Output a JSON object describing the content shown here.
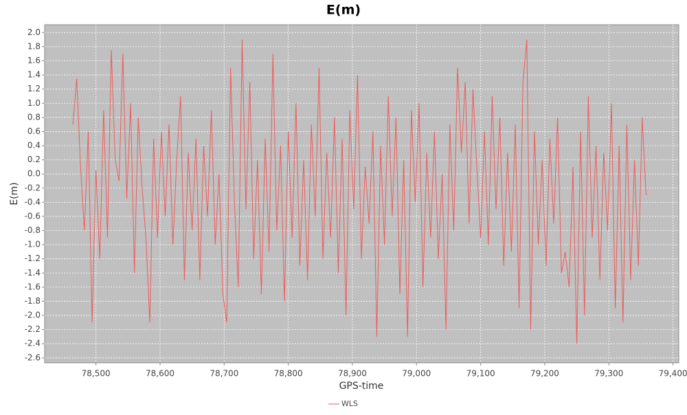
{
  "chart_data": {
    "type": "line",
    "title": "E(m)",
    "x_label": "GPS-time",
    "y_label": "E(m)",
    "x": [
      78464,
      78470,
      78476,
      78482,
      78488,
      78494,
      78500,
      78506,
      78512,
      78518,
      78524,
      78530,
      78536,
      78542,
      78548,
      78554,
      78560,
      78566,
      78572,
      78578,
      78584,
      78590,
      78596,
      78602,
      78608,
      78614,
      78620,
      78626,
      78632,
      78638,
      78644,
      78650,
      78656,
      78662,
      78668,
      78674,
      78680,
      78686,
      78692,
      78698,
      78704,
      78710,
      78716,
      78722,
      78728,
      78734,
      78740,
      78746,
      78752,
      78758,
      78764,
      78770,
      78776,
      78782,
      78788,
      78794,
      78800,
      78806,
      78812,
      78818,
      78824,
      78830,
      78836,
      78842,
      78848,
      78854,
      78860,
      78866,
      78872,
      78878,
      78884,
      78890,
      78896,
      78902,
      78908,
      78914,
      78920,
      78926,
      78932,
      78938,
      78944,
      78950,
      78956,
      78962,
      78968,
      78974,
      78980,
      78986,
      78992,
      78998,
      79004,
      79010,
      79016,
      79022,
      79028,
      79034,
      79040,
      79046,
      79052,
      79058,
      79064,
      79070,
      79076,
      79082,
      79088,
      79094,
      79100,
      79106,
      79112,
      79118,
      79124,
      79130,
      79136,
      79142,
      79148,
      79154,
      79160,
      79166,
      79172,
      79178,
      79184,
      79190,
      79196,
      79202,
      79208,
      79214,
      79220,
      79226,
      79232,
      79238,
      79244,
      79250,
      79256,
      79262,
      79268,
      79274,
      79280,
      79286,
      79292,
      79298,
      79304,
      79310,
      79316,
      79322,
      79328,
      79334,
      79340,
      79346,
      79352,
      79358
    ],
    "series": [
      {
        "name": "WLS",
        "color": "#f05a5a",
        "values": [
          0.7,
          1.35,
          0.1,
          -0.8,
          0.6,
          -2.1,
          0.05,
          -1.2,
          0.9,
          -0.9,
          1.75,
          0.2,
          -0.1,
          1.7,
          -0.35,
          1.0,
          -1.4,
          0.8,
          -0.2,
          -0.9,
          -2.1,
          0.5,
          -0.9,
          0.6,
          -0.6,
          0.7,
          -1.0,
          0.2,
          1.1,
          -1.5,
          0.3,
          -0.8,
          0.5,
          -1.5,
          0.4,
          -0.6,
          0.9,
          -1.0,
          0.0,
          -1.7,
          -2.1,
          1.5,
          -0.4,
          -1.6,
          1.9,
          -0.5,
          1.3,
          -1.2,
          0.2,
          -1.7,
          0.5,
          -1.1,
          1.7,
          -0.8,
          0.4,
          -1.8,
          0.6,
          -0.9,
          1.0,
          -1.3,
          0.2,
          -1.5,
          0.7,
          -0.6,
          1.5,
          -1.2,
          0.3,
          -0.9,
          0.8,
          -1.4,
          0.5,
          -2.0,
          0.9,
          -0.5,
          1.4,
          -1.2,
          0.1,
          -0.7,
          0.6,
          -2.3,
          0.4,
          -1.0,
          1.1,
          -0.6,
          0.8,
          -1.7,
          0.2,
          -2.3,
          0.9,
          -0.4,
          1.0,
          -1.6,
          0.3,
          -0.9,
          0.6,
          -1.2,
          0.0,
          -2.2,
          0.7,
          -0.8,
          1.5,
          0.3,
          1.3,
          -0.7,
          1.2,
          0.1,
          -0.9,
          0.6,
          -1.0,
          1.1,
          -0.5,
          0.8,
          -1.3,
          0.3,
          -1.1,
          0.7,
          -1.9,
          1.3,
          1.9,
          -2.2,
          0.6,
          -1.0,
          0.2,
          -1.3,
          0.5,
          -0.7,
          0.8,
          -1.4,
          -1.1,
          -1.6,
          0.1,
          -2.4,
          0.6,
          -2.0,
          1.1,
          -0.9,
          0.4,
          -1.5,
          0.3,
          -0.8,
          1.0,
          -1.9,
          0.4,
          -2.1,
          0.7,
          -1.5,
          0.2,
          -1.3,
          0.8,
          -0.3
        ]
      }
    ],
    "xlim": [
      78420,
      79409
    ],
    "ylim": [
      -2.67,
      2.11
    ],
    "xticks": [
      {
        "value": 78500,
        "label": "78,500"
      },
      {
        "value": 78600,
        "label": "78,600"
      },
      {
        "value": 78700,
        "label": "78,700"
      },
      {
        "value": 78800,
        "label": "78,800"
      },
      {
        "value": 78900,
        "label": "78,900"
      },
      {
        "value": 79000,
        "label": "79,000"
      },
      {
        "value": 79100,
        "label": "79,100"
      },
      {
        "value": 79200,
        "label": "79,200"
      },
      {
        "value": 79300,
        "label": "79,300"
      },
      {
        "value": 79400,
        "label": "79,400"
      }
    ],
    "yticks": [
      {
        "value": 2,
        "label": "2.0"
      },
      1.8,
      1.6,
      1.4,
      1.2,
      {
        "value": 1,
        "label": "1.0"
      },
      0.8,
      0.6,
      0.4,
      0.2,
      {
        "value": 0,
        "label": "0.0"
      },
      -0.2,
      -0.4,
      -0.6,
      -0.8,
      {
        "value": -1,
        "label": "-1.0"
      },
      -1.2,
      -1.4,
      -1.6,
      -1.8,
      {
        "value": -2,
        "label": "-2.0"
      },
      -2.2,
      -2.4,
      -2.6
    ],
    "grid": true
  }
}
